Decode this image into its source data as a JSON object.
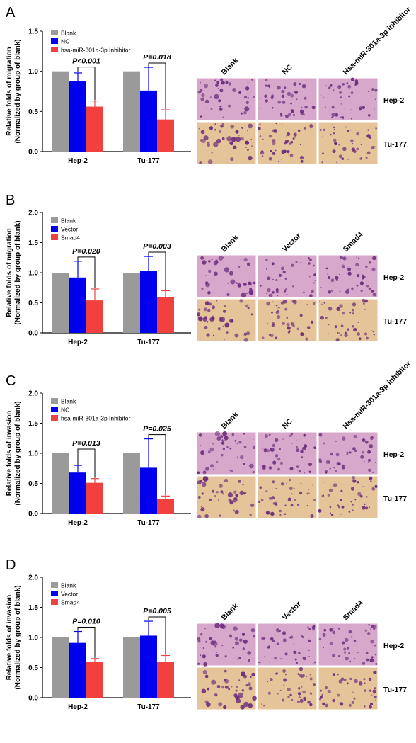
{
  "colors": {
    "blank": "#9a9a9a",
    "second": "#0000ee",
    "third": "#f0413e",
    "micro_bg": "#d8a8cc",
    "micro_dark": "#6a2a7a",
    "micro_warm": "#e6c49a"
  },
  "chart_data": [
    {
      "panel": "A",
      "type": "bar",
      "ylabel_line1": "Relative  folds of migration",
      "ylabel_line2": "(Normalized by group of blank)",
      "ylim": [
        0,
        1.5
      ],
      "yticks": [
        "0.0",
        "0.5",
        "1.0",
        "1.5"
      ],
      "categories": [
        "Hep-2",
        "Tu-177"
      ],
      "series": [
        {
          "name": "Blank",
          "values": [
            1.0,
            1.0
          ],
          "errors": [
            0,
            0
          ]
        },
        {
          "name": "NC",
          "values": [
            0.88,
            0.76
          ],
          "errors": [
            0.1,
            0.29
          ]
        },
        {
          "name": "hsa-miR-301a-3p Inhibitor",
          "values": [
            0.56,
            0.4
          ],
          "errors": [
            0.07,
            0.12
          ]
        }
      ],
      "pvalues": [
        "P<0.001",
        "P=0.018"
      ],
      "image_columns": [
        "Blank",
        "NC",
        "Hsa-miR-301a-3p inhibitor"
      ],
      "image_rows": [
        "Hep-2",
        "Tu-177"
      ]
    },
    {
      "panel": "B",
      "type": "bar",
      "ylabel_line1": "Relative  folds of migration",
      "ylabel_line2": "(Normalized by group of blank)",
      "ylim": [
        0,
        2.0
      ],
      "yticks": [
        "0.0",
        "0.5",
        "1.0",
        "1.5",
        "2.0"
      ],
      "categories": [
        "Hep-2",
        "Tu-177"
      ],
      "series": [
        {
          "name": "Blank",
          "values": [
            1.0,
            1.0
          ],
          "errors": [
            0,
            0
          ]
        },
        {
          "name": "Vector",
          "values": [
            0.92,
            1.03
          ],
          "errors": [
            0.27,
            0.24
          ]
        },
        {
          "name": "Smad4",
          "values": [
            0.54,
            0.59
          ],
          "errors": [
            0.19,
            0.11
          ]
        }
      ],
      "pvalues": [
        "P=0.020",
        "P=0.003"
      ],
      "image_columns": [
        "Blank",
        "Vector",
        "Smad4"
      ],
      "image_rows": [
        "Hep-2",
        "Tu-177"
      ]
    },
    {
      "panel": "C",
      "type": "bar",
      "ylabel_line1": "Relative  folds of invasion",
      "ylabel_line2": "(Normalized by group of blank)",
      "ylim": [
        0,
        2.0
      ],
      "yticks": [
        "0.0",
        "0.5",
        "1.0",
        "1.5",
        "2.0"
      ],
      "categories": [
        "Hep-2",
        "Tu-177"
      ],
      "series": [
        {
          "name": "Blank",
          "values": [
            1.0,
            1.0
          ],
          "errors": [
            0,
            0
          ]
        },
        {
          "name": "NC",
          "values": [
            0.68,
            0.76
          ],
          "errors": [
            0.12,
            0.48
          ]
        },
        {
          "name": "hsa-miR-301a-3p Inhibitor",
          "values": [
            0.51,
            0.24
          ],
          "errors": [
            0.07,
            0.05
          ]
        }
      ],
      "pvalues": [
        "P=0.013",
        "P=0.025"
      ],
      "image_columns": [
        "Blank",
        "NC",
        "Hsa-miR-301a-3p inhibitor"
      ],
      "image_rows": [
        "Hep-2",
        "Tu-177"
      ]
    },
    {
      "panel": "D",
      "type": "bar",
      "ylabel_line1": "Relative  folds of invasion",
      "ylabel_line2": "(Normalized by group of blank)",
      "ylim": [
        0,
        2.0
      ],
      "yticks": [
        "0.0",
        "0.5",
        "1.0",
        "1.5",
        "2.0"
      ],
      "categories": [
        "Hep-2",
        "Tu-177"
      ],
      "series": [
        {
          "name": "Blank",
          "values": [
            1.0,
            1.0
          ],
          "errors": [
            0,
            0
          ]
        },
        {
          "name": "Vector",
          "values": [
            0.91,
            1.03
          ],
          "errors": [
            0.19,
            0.24
          ]
        },
        {
          "name": "Smad4",
          "values": [
            0.59,
            0.59
          ],
          "errors": [
            0.06,
            0.11
          ]
        }
      ],
      "pvalues": [
        "P=0.010",
        "P=0.005"
      ],
      "image_columns": [
        "Blank",
        "Vector",
        "Smad4"
      ],
      "image_rows": [
        "Hep-2",
        "Tu-177"
      ]
    }
  ]
}
